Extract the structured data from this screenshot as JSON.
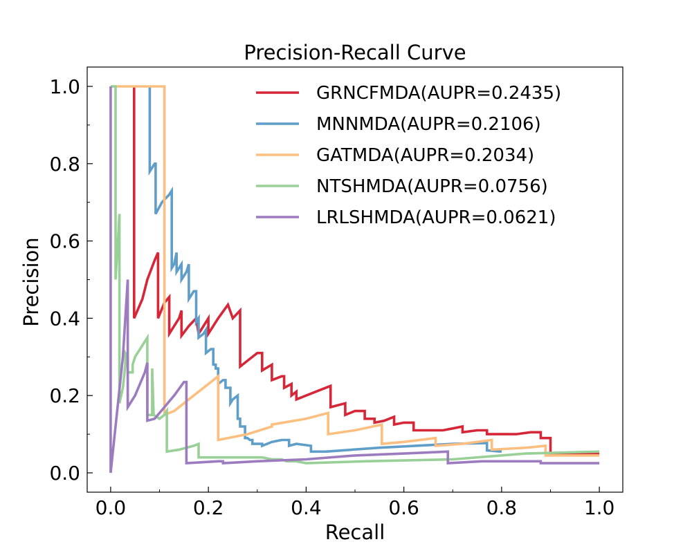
{
  "chart_data": {
    "type": "line",
    "title": "Precision-Recall Curve",
    "xlabel": "Recall",
    "ylabel": "Precision",
    "xlim": [
      -0.048,
      1.048
    ],
    "ylim": [
      -0.05,
      1.05
    ],
    "x_ticks": [
      "0.0",
      "0.2",
      "0.4",
      "0.6",
      "0.8",
      "1.0"
    ],
    "x_tick_values": [
      0.0,
      0.2,
      0.4,
      0.6,
      0.8,
      1.0
    ],
    "y_ticks": [
      "0.0",
      "0.2",
      "0.4",
      "0.6",
      "0.8",
      "1.0"
    ],
    "y_tick_values": [
      0.0,
      0.2,
      0.4,
      0.6,
      0.8,
      1.0
    ],
    "grid": false,
    "legend_position": "top-right",
    "series": [
      {
        "name": "GRNCFMDA(AUPR=0.2435)",
        "color": "#d62739",
        "points": [
          [
            0.048,
            1.0
          ],
          [
            0.048,
            0.4
          ],
          [
            0.065,
            0.45
          ],
          [
            0.075,
            0.5
          ],
          [
            0.09,
            0.55
          ],
          [
            0.097,
            0.57
          ],
          [
            0.097,
            0.4
          ],
          [
            0.11,
            0.44
          ],
          [
            0.12,
            0.455
          ],
          [
            0.12,
            0.36
          ],
          [
            0.14,
            0.4
          ],
          [
            0.145,
            0.42
          ],
          [
            0.145,
            0.355
          ],
          [
            0.16,
            0.38
          ],
          [
            0.175,
            0.4
          ],
          [
            0.18,
            0.36
          ],
          [
            0.19,
            0.38
          ],
          [
            0.2,
            0.4
          ],
          [
            0.2,
            0.36
          ],
          [
            0.22,
            0.4
          ],
          [
            0.24,
            0.435
          ],
          [
            0.25,
            0.4
          ],
          [
            0.265,
            0.42
          ],
          [
            0.265,
            0.275
          ],
          [
            0.28,
            0.29
          ],
          [
            0.3,
            0.31
          ],
          [
            0.31,
            0.31
          ],
          [
            0.31,
            0.265
          ],
          [
            0.33,
            0.28
          ],
          [
            0.33,
            0.24
          ],
          [
            0.35,
            0.25
          ],
          [
            0.355,
            0.25
          ],
          [
            0.355,
            0.22
          ],
          [
            0.37,
            0.23
          ],
          [
            0.37,
            0.2
          ],
          [
            0.38,
            0.21
          ],
          [
            0.38,
            0.19
          ],
          [
            0.4,
            0.2
          ],
          [
            0.42,
            0.21
          ],
          [
            0.45,
            0.225
          ],
          [
            0.45,
            0.17
          ],
          [
            0.48,
            0.18
          ],
          [
            0.48,
            0.15
          ],
          [
            0.5,
            0.16
          ],
          [
            0.52,
            0.16
          ],
          [
            0.52,
            0.14
          ],
          [
            0.54,
            0.14
          ],
          [
            0.54,
            0.13
          ],
          [
            0.56,
            0.135
          ],
          [
            0.58,
            0.145
          ],
          [
            0.58,
            0.125
          ],
          [
            0.6,
            0.13
          ],
          [
            0.62,
            0.13
          ],
          [
            0.62,
            0.11
          ],
          [
            0.65,
            0.11
          ],
          [
            0.68,
            0.11
          ],
          [
            0.7,
            0.115
          ],
          [
            0.72,
            0.12
          ],
          [
            0.72,
            0.105
          ],
          [
            0.75,
            0.11
          ],
          [
            0.77,
            0.11
          ],
          [
            0.77,
            0.1
          ],
          [
            0.8,
            0.1
          ],
          [
            0.83,
            0.1
          ],
          [
            0.86,
            0.105
          ],
          [
            0.88,
            0.105
          ],
          [
            0.88,
            0.09
          ],
          [
            0.9,
            0.09
          ],
          [
            0.9,
            0.05
          ],
          [
            0.92,
            0.05
          ],
          [
            1.0,
            0.05
          ]
        ]
      },
      {
        "name": "MNNMDA(AUPR=0.2106)",
        "color": "#5f9ec9",
        "points": [
          [
            0.08,
            1.0
          ],
          [
            0.08,
            0.78
          ],
          [
            0.09,
            0.8
          ],
          [
            0.092,
            0.8
          ],
          [
            0.092,
            0.67
          ],
          [
            0.105,
            0.7
          ],
          [
            0.12,
            0.72
          ],
          [
            0.125,
            0.73
          ],
          [
            0.125,
            0.53
          ],
          [
            0.13,
            0.54
          ],
          [
            0.135,
            0.57
          ],
          [
            0.135,
            0.52
          ],
          [
            0.145,
            0.54
          ],
          [
            0.145,
            0.5
          ],
          [
            0.155,
            0.52
          ],
          [
            0.16,
            0.54
          ],
          [
            0.16,
            0.45
          ],
          [
            0.17,
            0.47
          ],
          [
            0.175,
            0.47
          ],
          [
            0.175,
            0.39
          ],
          [
            0.18,
            0.4
          ],
          [
            0.18,
            0.35
          ],
          [
            0.19,
            0.36
          ],
          [
            0.195,
            0.37
          ],
          [
            0.195,
            0.31
          ],
          [
            0.205,
            0.32
          ],
          [
            0.21,
            0.32
          ],
          [
            0.21,
            0.28
          ],
          [
            0.215,
            0.28
          ],
          [
            0.215,
            0.27
          ],
          [
            0.22,
            0.27
          ],
          [
            0.22,
            0.23
          ],
          [
            0.23,
            0.24
          ],
          [
            0.235,
            0.24
          ],
          [
            0.235,
            0.22
          ],
          [
            0.245,
            0.22
          ],
          [
            0.245,
            0.18
          ],
          [
            0.25,
            0.19
          ],
          [
            0.26,
            0.2
          ],
          [
            0.26,
            0.14
          ],
          [
            0.265,
            0.14
          ],
          [
            0.265,
            0.12
          ],
          [
            0.275,
            0.12
          ],
          [
            0.275,
            0.09
          ],
          [
            0.28,
            0.09
          ],
          [
            0.285,
            0.085
          ],
          [
            0.29,
            0.085
          ],
          [
            0.29,
            0.075
          ],
          [
            0.31,
            0.075
          ],
          [
            0.31,
            0.07
          ],
          [
            0.33,
            0.08
          ],
          [
            0.35,
            0.085
          ],
          [
            0.365,
            0.085
          ],
          [
            0.365,
            0.07
          ],
          [
            0.38,
            0.075
          ],
          [
            0.41,
            0.07
          ],
          [
            0.41,
            0.055
          ],
          [
            0.44,
            0.055
          ],
          [
            0.55,
            0.065
          ],
          [
            0.7,
            0.075
          ],
          [
            0.77,
            0.077
          ],
          [
            0.77,
            0.058
          ],
          [
            0.8,
            0.055
          ]
        ]
      },
      {
        "name": "GATMDA(AUPR=0.2034)",
        "color": "#fdbf80",
        "points": [
          [
            0.0,
            1.0
          ],
          [
            0.11,
            1.0
          ],
          [
            0.11,
            0.15
          ],
          [
            0.13,
            0.16
          ],
          [
            0.17,
            0.2
          ],
          [
            0.22,
            0.25
          ],
          [
            0.22,
            0.085
          ],
          [
            0.28,
            0.1
          ],
          [
            0.33,
            0.12
          ],
          [
            0.33,
            0.125
          ],
          [
            0.4,
            0.14
          ],
          [
            0.445,
            0.155
          ],
          [
            0.445,
            0.1
          ],
          [
            0.5,
            0.11
          ],
          [
            0.555,
            0.125
          ],
          [
            0.555,
            0.075
          ],
          [
            0.6,
            0.08
          ],
          [
            0.665,
            0.09
          ],
          [
            0.665,
            0.07
          ],
          [
            0.72,
            0.075
          ],
          [
            0.78,
            0.085
          ],
          [
            0.78,
            0.06
          ],
          [
            0.85,
            0.065
          ],
          [
            0.89,
            0.07
          ],
          [
            0.89,
            0.045
          ],
          [
            1.0,
            0.045
          ]
        ]
      },
      {
        "name": "NTSHMDA(AUPR=0.0756)",
        "color": "#99d097",
        "points": [
          [
            0.0,
            1.0
          ],
          [
            0.007,
            1.0
          ],
          [
            0.01,
            1.0
          ],
          [
            0.01,
            0.5
          ],
          [
            0.015,
            0.6
          ],
          [
            0.018,
            0.67
          ],
          [
            0.018,
            0.18
          ],
          [
            0.025,
            0.22
          ],
          [
            0.03,
            0.28
          ],
          [
            0.03,
            0.31
          ],
          [
            0.035,
            0.3
          ],
          [
            0.035,
            0.26
          ],
          [
            0.045,
            0.26
          ],
          [
            0.045,
            0.28
          ],
          [
            0.05,
            0.3
          ],
          [
            0.06,
            0.32
          ],
          [
            0.075,
            0.35
          ],
          [
            0.075,
            0.15
          ],
          [
            0.082,
            0.15
          ],
          [
            0.085,
            0.15
          ],
          [
            0.085,
            0.27
          ],
          [
            0.088,
            0.15
          ],
          [
            0.1,
            0.14
          ],
          [
            0.11,
            0.15
          ],
          [
            0.115,
            0.16
          ],
          [
            0.115,
            0.055
          ],
          [
            0.14,
            0.06
          ],
          [
            0.17,
            0.07
          ],
          [
            0.18,
            0.075
          ],
          [
            0.18,
            0.04
          ],
          [
            0.22,
            0.04
          ],
          [
            0.26,
            0.04
          ],
          [
            0.3,
            0.04
          ],
          [
            0.31,
            0.04
          ],
          [
            0.33,
            0.035
          ],
          [
            0.35,
            0.035
          ],
          [
            0.36,
            0.03
          ],
          [
            0.38,
            0.03
          ],
          [
            0.4,
            0.025
          ],
          [
            0.52,
            0.03
          ],
          [
            0.7,
            0.035
          ],
          [
            0.85,
            0.05
          ],
          [
            1.0,
            0.055
          ]
        ]
      },
      {
        "name": "LRLSHMDA(AUPR=0.0621)",
        "color": "#9c7cbf",
        "points": [
          [
            0.0,
            0.0
          ],
          [
            0.0,
            1.0
          ],
          [
            0.0,
            0.0
          ],
          [
            0.015,
            0.18
          ],
          [
            0.025,
            0.3
          ],
          [
            0.035,
            0.5
          ],
          [
            0.035,
            0.17
          ],
          [
            0.05,
            0.2
          ],
          [
            0.07,
            0.26
          ],
          [
            0.075,
            0.285
          ],
          [
            0.075,
            0.135
          ],
          [
            0.09,
            0.14
          ],
          [
            0.11,
            0.17
          ],
          [
            0.13,
            0.2
          ],
          [
            0.15,
            0.235
          ],
          [
            0.155,
            0.235
          ],
          [
            0.155,
            0.025
          ],
          [
            0.22,
            0.03
          ],
          [
            0.23,
            0.03
          ],
          [
            0.23,
            0.025
          ],
          [
            0.3,
            0.03
          ],
          [
            0.4,
            0.035
          ],
          [
            0.5,
            0.045
          ],
          [
            0.6,
            0.05
          ],
          [
            0.69,
            0.055
          ],
          [
            0.69,
            0.025
          ],
          [
            0.76,
            0.03
          ],
          [
            0.88,
            0.03
          ],
          [
            0.88,
            0.025
          ],
          [
            1.0,
            0.025
          ]
        ]
      }
    ]
  }
}
